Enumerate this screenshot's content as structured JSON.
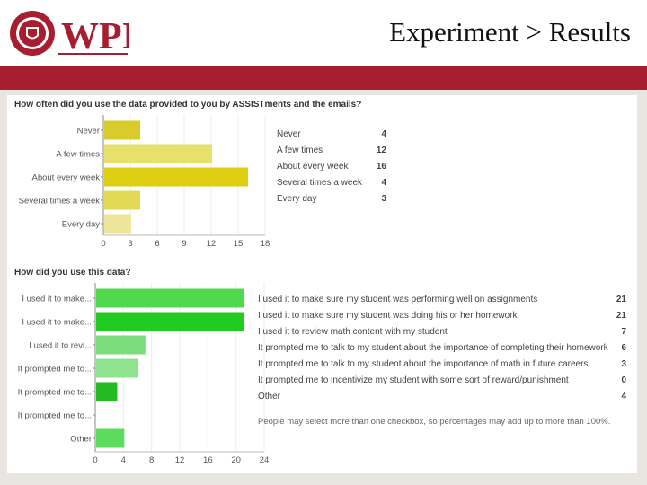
{
  "header": {
    "title": "Experiment > Results",
    "logo_text": "WPI",
    "logo_seal_text": "WORCESTER POLYTECHNIC INSTITUTE 1865",
    "accent_color": "#a71e31"
  },
  "chart_data": [
    {
      "type": "bar",
      "orientation": "horizontal",
      "title": "How often did you use the data provided to you by ASSISTments and the emails?",
      "categories": [
        "Never",
        "A few times",
        "About every week",
        "Several times a week",
        "Every day"
      ],
      "values": [
        4,
        12,
        16,
        4,
        3
      ],
      "xlim": [
        0,
        18
      ],
      "xticks": [
        0,
        3,
        6,
        9,
        12,
        15,
        18
      ],
      "bar_colors": [
        "#d7cc2a",
        "#e7e06a",
        "#ddce11",
        "#e2d955",
        "#ece59a"
      ],
      "legend": [
        {
          "label": "Never",
          "count": 4
        },
        {
          "label": "A few times",
          "count": 12
        },
        {
          "label": "About every week",
          "count": 16
        },
        {
          "label": "Several times a week",
          "count": 4
        },
        {
          "label": "Every day",
          "count": 3
        }
      ]
    },
    {
      "type": "bar",
      "orientation": "horizontal",
      "title": "How did you use this data?",
      "categories": [
        "I used it to make...",
        "I used it to make...",
        "I used it to revi...",
        "It prompted me to...",
        "It prompted me to...",
        "It prompted me to...",
        "Other"
      ],
      "values": [
        21,
        21,
        7,
        6,
        3,
        0,
        4
      ],
      "xlim": [
        0,
        24
      ],
      "xticks": [
        0,
        4,
        8,
        12,
        16,
        20,
        24
      ],
      "bar_colors": [
        "#4fd94f",
        "#1fcc1f",
        "#7ddd7d",
        "#8ee48e",
        "#22bb22",
        "#4cd64c",
        "#5cdb5c"
      ],
      "legend": [
        {
          "label": "I used it to make sure my student was performing well on assignments",
          "count": 21
        },
        {
          "label": "I used it to make sure my student was doing his or her homework",
          "count": 21
        },
        {
          "label": "I used it to review math content with my student",
          "count": 7
        },
        {
          "label": "It prompted me to talk to my student about the importance of completing their homework",
          "count": 6
        },
        {
          "label": "It prompted me to talk to my student about the importance of math in future careers",
          "count": 3
        },
        {
          "label": "It prompted me to incentivize my student with some sort of reward/punishment",
          "count": 0
        },
        {
          "label": "Other",
          "count": 4
        }
      ],
      "footnote": "People may select more than one checkbox, so percentages may add up to more than 100%."
    }
  ]
}
